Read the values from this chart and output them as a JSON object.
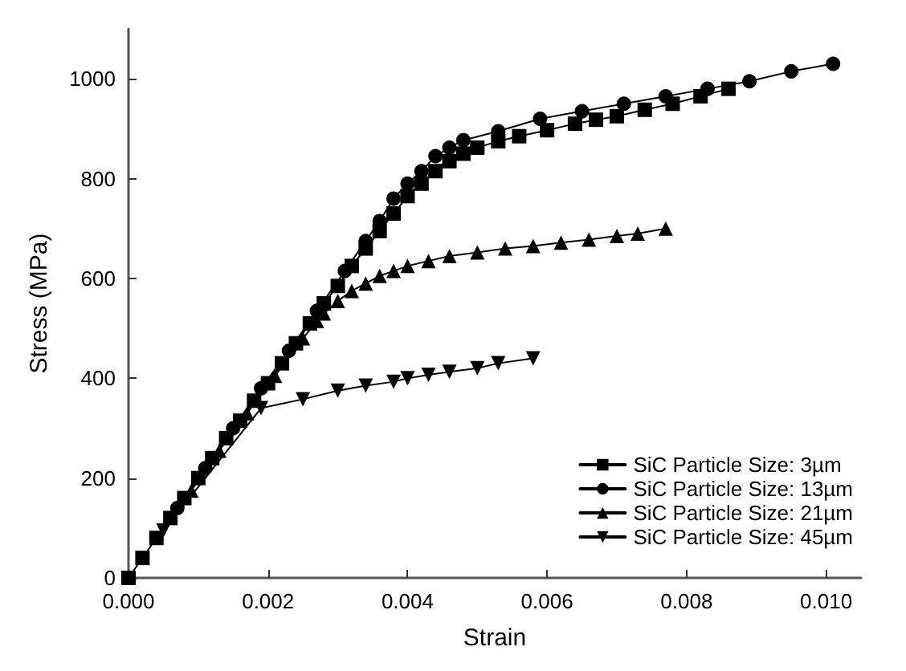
{
  "chart_data": {
    "type": "line",
    "xlabel": "Strain",
    "ylabel": "Stress (MPa)",
    "xlim": [
      0,
      0.0105
    ],
    "xticks": [
      {
        "value": 0,
        "label": "0.000"
      },
      {
        "value": 0.002,
        "label": "0.002"
      },
      {
        "value": 0.004,
        "label": "0.004"
      },
      {
        "value": 0.006,
        "label": "0.006"
      },
      {
        "value": 0.008,
        "label": "0.008"
      },
      {
        "value": 0.01,
        "label": "0.010"
      }
    ],
    "ylim": [
      0,
      1100
    ],
    "yticks": [
      0,
      200,
      400,
      600,
      800,
      1000
    ],
    "grid": false,
    "legend": "bottom right",
    "line_style": "solid",
    "series": [
      {
        "name": "SiC Particle Size: 3µm",
        "color": "#000000",
        "marker": "square",
        "x": [
          0,
          0.0002,
          0.0004,
          0.0006,
          0.0008,
          0.001,
          0.0012,
          0.0014,
          0.0016,
          0.0018,
          0.002,
          0.0022,
          0.0024,
          0.0026,
          0.0028,
          0.003,
          0.0032,
          0.0034,
          0.0036,
          0.0038,
          0.004,
          0.0042,
          0.0044,
          0.0046,
          0.0048,
          0.005,
          0.0053,
          0.0056,
          0.006,
          0.0064,
          0.0067,
          0.007,
          0.0074,
          0.0078,
          0.0082,
          0.0086
        ],
        "values": [
          0,
          40,
          80,
          120,
          160,
          200,
          240,
          280,
          315,
          355,
          390,
          430,
          470,
          510,
          550,
          585,
          625,
          660,
          695,
          730,
          765,
          790,
          815,
          835,
          850,
          862,
          875,
          885,
          897,
          910,
          918,
          925,
          938,
          950,
          965,
          980
        ]
      },
      {
        "name": "SiC Particle Size: 13µm",
        "color": "#000000",
        "marker": "circle",
        "x": [
          0.0007,
          0.0011,
          0.0015,
          0.0019,
          0.0023,
          0.0027,
          0.0031,
          0.0034,
          0.0036,
          0.0038,
          0.004,
          0.0042,
          0.0044,
          0.0046,
          0.0048,
          0.0053,
          0.0059,
          0.0065,
          0.0071,
          0.0077,
          0.0083,
          0.0089,
          0.0095,
          0.0101
        ],
        "values": [
          140,
          220,
          300,
          380,
          455,
          535,
          615,
          675,
          715,
          760,
          790,
          815,
          845,
          862,
          877,
          895,
          920,
          935,
          950,
          965,
          980,
          995,
          1015,
          1030
        ]
      },
      {
        "name": "SiC Particle Size: 21µm",
        "color": "#000000",
        "marker": "triangle",
        "x": [
          0.0009,
          0.0013,
          0.0017,
          0.0021,
          0.0025,
          0.0027,
          0.0028,
          0.003,
          0.0032,
          0.0034,
          0.0036,
          0.0038,
          0.004,
          0.0043,
          0.0046,
          0.005,
          0.0054,
          0.0058,
          0.0062,
          0.0066,
          0.007,
          0.0073,
          0.0077
        ],
        "values": [
          175,
          255,
          330,
          405,
          480,
          515,
          530,
          555,
          575,
          590,
          605,
          615,
          625,
          635,
          645,
          652,
          660,
          665,
          672,
          678,
          685,
          690,
          700
        ]
      },
      {
        "name": "SiC Particle Size: 45µm",
        "color": "#000000",
        "marker": "triangle-down",
        "x": [
          0.0005,
          0.0019,
          0.0025,
          0.003,
          0.0034,
          0.0038,
          0.004,
          0.0043,
          0.0046,
          0.005,
          0.0053,
          0.0058
        ],
        "values": [
          95,
          340,
          358,
          375,
          385,
          393,
          400,
          407,
          413,
          420,
          430,
          440
        ]
      }
    ]
  }
}
